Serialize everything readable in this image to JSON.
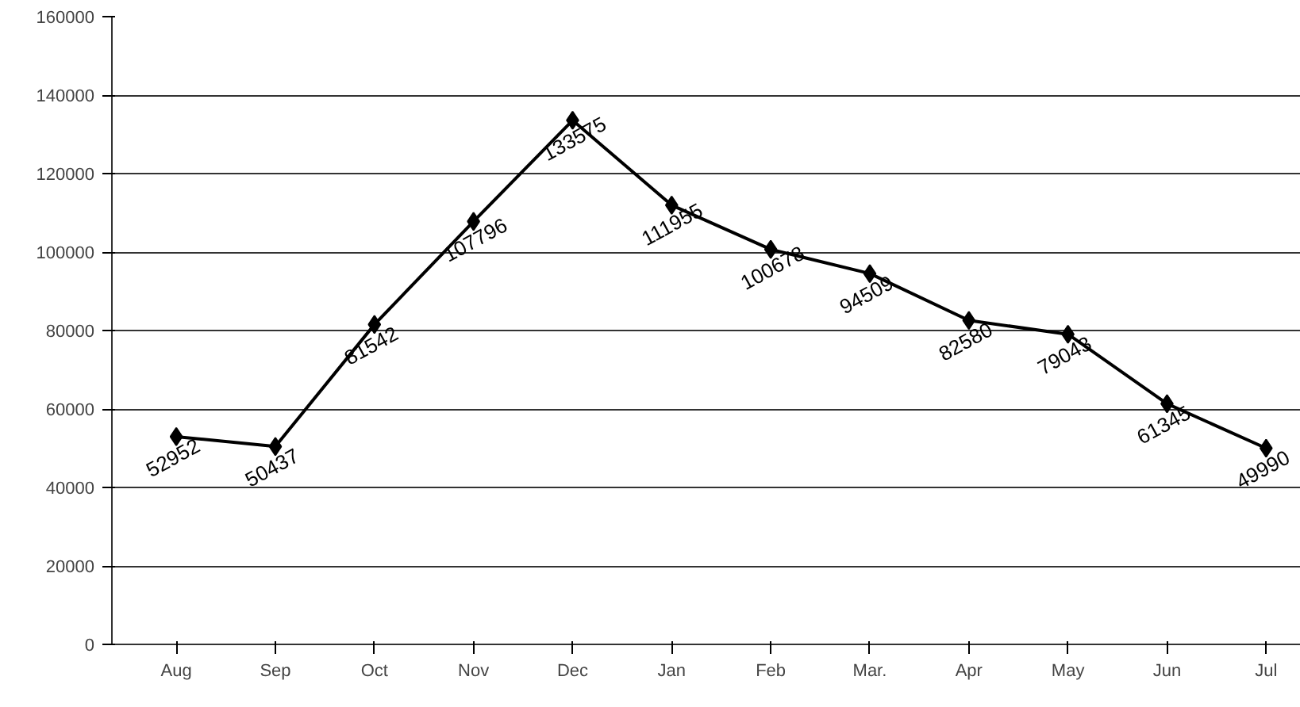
{
  "chart_data": {
    "type": "line",
    "categories": [
      "Aug",
      "Sep",
      "Oct",
      "Nov",
      "Dec",
      "Jan",
      "Feb",
      "Mar.",
      "Apr",
      "May",
      "Jun",
      "Jul"
    ],
    "series": [
      {
        "color": "#000000",
        "values": [
          52952,
          50437,
          81542,
          107796,
          133575,
          111955,
          100678,
          94509,
          82580,
          79043,
          61345,
          49990
        ]
      }
    ],
    "ylim": [
      0,
      160000
    ],
    "yticks": [
      0,
      20000,
      40000,
      60000,
      80000,
      100000,
      120000,
      140000,
      160000
    ],
    "grid": "y",
    "marker": "diamond",
    "line_style": "solid",
    "data_labels": true
  }
}
